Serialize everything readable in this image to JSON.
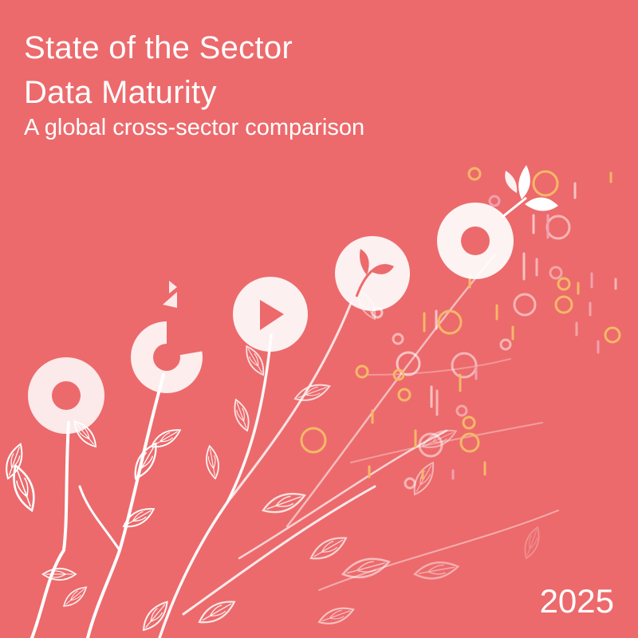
{
  "cover": {
    "title_line_1": "State of the Sector",
    "title_line_2": "Data Maturity",
    "subtitle": "A global cross-sector comparison",
    "year": "2025"
  },
  "colors": {
    "background": "#ec6a6c",
    "stem": "#ffffff",
    "accent_yellow": "#f5b868",
    "accent_pink": "#f0a0b0"
  },
  "illustration": {
    "maturity_stages": [
      {
        "stage": 1,
        "icon": "ring-icon"
      },
      {
        "stage": 2,
        "icon": "broken-ring-icon"
      },
      {
        "stage": 3,
        "icon": "triangle-icon"
      },
      {
        "stage": 4,
        "icon": "sprout-icon"
      },
      {
        "stage": 5,
        "icon": "ring-icon"
      }
    ]
  }
}
